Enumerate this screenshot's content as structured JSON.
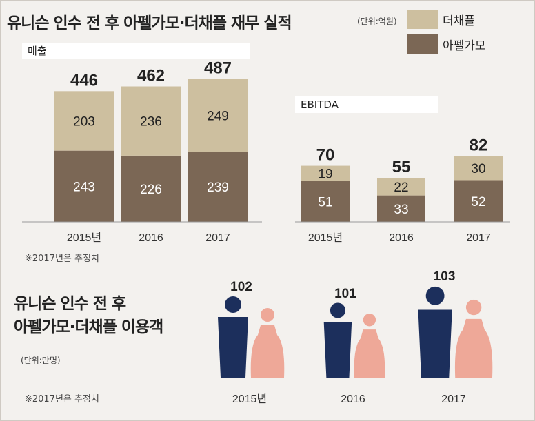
{
  "title": "유니슨 인수 전 후 아펠가모·더채플 재무 실적",
  "unit": "(단위:억원)",
  "legend": [
    {
      "label": "더채플",
      "color": "#cdbf9f"
    },
    {
      "label": "아펠가모",
      "color": "#7b6755"
    }
  ],
  "note": "※2017년은 추정치",
  "sub_title_line1": "유니슨 인수 전 후",
  "sub_title_line2": "아펠가모·더채플 이용객",
  "sub_unit": "(단위:만명)",
  "chart_data": [
    {
      "type": "bar",
      "title": "매출",
      "categories": [
        "2015년",
        "2016",
        "2017"
      ],
      "series": [
        {
          "name": "아펠가모",
          "values": [
            243,
            226,
            239
          ],
          "color": "#7b6755"
        },
        {
          "name": "더채플",
          "values": [
            203,
            236,
            249
          ],
          "color": "#cdbf9f"
        }
      ],
      "totals": [
        446,
        462,
        487
      ],
      "stacked": true
    },
    {
      "type": "bar",
      "title": "EBITDA",
      "categories": [
        "2015년",
        "2016",
        "2017"
      ],
      "series": [
        {
          "name": "아펠가모",
          "values": [
            51,
            33,
            52
          ],
          "color": "#7b6755"
        },
        {
          "name": "더채플",
          "values": [
            19,
            22,
            30
          ],
          "color": "#cdbf9f"
        }
      ],
      "totals": [
        70,
        55,
        82
      ],
      "stacked": true
    },
    {
      "type": "bar",
      "title": "",
      "categories": [
        "2015년",
        "2016",
        "2017"
      ],
      "values": [
        102,
        101,
        103
      ],
      "colors": {
        "male": "#1c2f5c",
        "female": "#eea898"
      }
    }
  ]
}
